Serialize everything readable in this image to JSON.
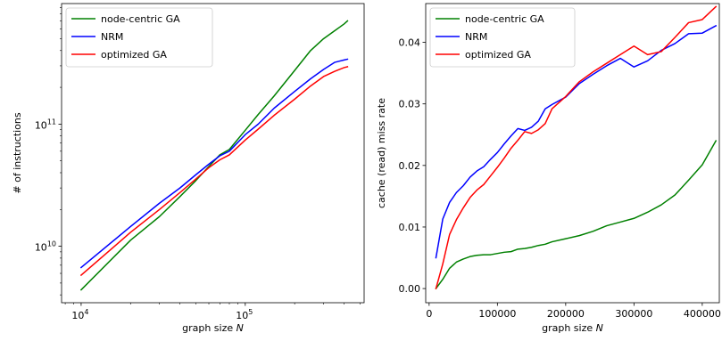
{
  "chart_data": [
    {
      "type": "line",
      "xlabel": "graph size",
      "xlabel_var": "N",
      "ylabel": "# of instructions",
      "xscale": "log",
      "yscale": "log",
      "xlim": [
        7600,
        530000
      ],
      "ylim": [
        3450000000.0,
        970000000000.0
      ],
      "xticks_major": [
        {
          "value": 10000,
          "base": "10",
          "exp": "4"
        },
        {
          "value": 100000,
          "base": "10",
          "exp": "5"
        }
      ],
      "yticks_major": [
        {
          "value": 10000000000.0,
          "base": "10",
          "exp": "10"
        },
        {
          "value": 100000000000.0,
          "base": "10",
          "exp": "11"
        }
      ],
      "legend": "top-left",
      "grid": false,
      "x": [
        10000,
        20000,
        30000,
        40000,
        50000,
        60000,
        70000,
        80000,
        100000,
        120000,
        150000,
        200000,
        250000,
        300000,
        350000,
        400000,
        420000
      ],
      "series": [
        {
          "name": "node-centric GA",
          "color": "#008000",
          "values": [
            4400000000.0,
            11200000000.0,
            17500000000.0,
            25500000000.0,
            34500000000.0,
            45000000000.0,
            56000000000.0,
            62000000000.0,
            89000000000.0,
            120000000000.0,
            170000000000.0,
            275000000000.0,
            400000000000.0,
            500000000000.0,
            580000000000.0,
            660000000000.0,
            700000000000.0
          ]
        },
        {
          "name": "NRM",
          "color": "#0000ff",
          "values": [
            6700000000.0,
            14500000000.0,
            22500000000.0,
            30000000000.0,
            38500000000.0,
            47000000000.0,
            55000000000.0,
            60000000000.0,
            82000000000.0,
            100000000000.0,
            135000000000.0,
            185000000000.0,
            235000000000.0,
            280000000000.0,
            320000000000.0,
            335000000000.0,
            340000000000.0
          ]
        },
        {
          "name": "optimized GA",
          "color": "#ff0000",
          "values": [
            5800000000.0,
            13000000000.0,
            20000000000.0,
            27500000000.0,
            35500000000.0,
            44000000000.0,
            51000000000.0,
            56000000000.0,
            74000000000.0,
            91000000000.0,
            118000000000.0,
            160000000000.0,
            205000000000.0,
            245000000000.0,
            270000000000.0,
            290000000000.0,
            295000000000.0
          ]
        }
      ]
    },
    {
      "type": "line",
      "xlabel": "graph size",
      "xlabel_var": "N",
      "ylabel": "cache (read) miss rate",
      "xscale": "linear",
      "yscale": "linear",
      "xlim": [
        -5000,
        425000
      ],
      "ylim": [
        -0.0023,
        0.0463
      ],
      "xticks": [
        {
          "value": 0,
          "label": "0"
        },
        {
          "value": 100000,
          "label": "100000"
        },
        {
          "value": 200000,
          "label": "200000"
        },
        {
          "value": 300000,
          "label": "300000"
        },
        {
          "value": 400000,
          "label": "400000"
        }
      ],
      "yticks": [
        {
          "value": 0.0,
          "label": "0.00"
        },
        {
          "value": 0.01,
          "label": "0.01"
        },
        {
          "value": 0.02,
          "label": "0.02"
        },
        {
          "value": 0.03,
          "label": "0.03"
        },
        {
          "value": 0.04,
          "label": "0.04"
        }
      ],
      "legend": "top-left",
      "grid": false,
      "series": [
        {
          "name": "node-centric GA",
          "color": "#008000",
          "x": [
            10000,
            20000,
            30000,
            40000,
            50000,
            60000,
            70000,
            80000,
            90000,
            100000,
            110000,
            120000,
            130000,
            140000,
            150000,
            160000,
            170000,
            180000,
            200000,
            220000,
            240000,
            260000,
            280000,
            300000,
            320000,
            340000,
            360000,
            380000,
            400000,
            420000
          ],
          "values": [
            0.0,
            0.0015,
            0.0033,
            0.0043,
            0.0048,
            0.0052,
            0.0054,
            0.0055,
            0.0055,
            0.0057,
            0.0059,
            0.006,
            0.0064,
            0.0065,
            0.0067,
            0.007,
            0.0072,
            0.0076,
            0.0081,
            0.0086,
            0.0093,
            0.0102,
            0.0108,
            0.0114,
            0.0124,
            0.0136,
            0.0152,
            0.0176,
            0.0201,
            0.024
          ]
        },
        {
          "name": "NRM",
          "color": "#0000ff",
          "x": [
            10000,
            20000,
            30000,
            40000,
            50000,
            60000,
            70000,
            80000,
            90000,
            100000,
            110000,
            120000,
            130000,
            140000,
            150000,
            160000,
            170000,
            180000,
            200000,
            220000,
            240000,
            260000,
            280000,
            300000,
            320000,
            340000,
            360000,
            380000,
            400000,
            420000
          ],
          "values": [
            0.005,
            0.0113,
            0.014,
            0.0156,
            0.0167,
            0.0181,
            0.0191,
            0.0198,
            0.021,
            0.0221,
            0.0235,
            0.0248,
            0.026,
            0.0257,
            0.0262,
            0.0272,
            0.0292,
            0.0299,
            0.0311,
            0.0333,
            0.0348,
            0.0362,
            0.0374,
            0.036,
            0.037,
            0.0387,
            0.0398,
            0.0414,
            0.0415,
            0.0427
          ]
        },
        {
          "name": "optimized GA",
          "color": "#ff0000",
          "x": [
            10000,
            20000,
            30000,
            40000,
            50000,
            60000,
            70000,
            80000,
            90000,
            100000,
            110000,
            120000,
            130000,
            140000,
            150000,
            160000,
            170000,
            180000,
            200000,
            220000,
            240000,
            260000,
            280000,
            300000,
            320000,
            340000,
            360000,
            380000,
            400000,
            420000
          ],
          "values": [
            0.0,
            0.004,
            0.0088,
            0.0112,
            0.0131,
            0.0148,
            0.016,
            0.0169,
            0.0183,
            0.0197,
            0.0212,
            0.0228,
            0.0241,
            0.0255,
            0.0252,
            0.0258,
            0.0268,
            0.0292,
            0.0312,
            0.0336,
            0.0352,
            0.0366,
            0.038,
            0.0394,
            0.038,
            0.0385,
            0.0408,
            0.0432,
            0.0437,
            0.0458
          ]
        }
      ]
    }
  ]
}
